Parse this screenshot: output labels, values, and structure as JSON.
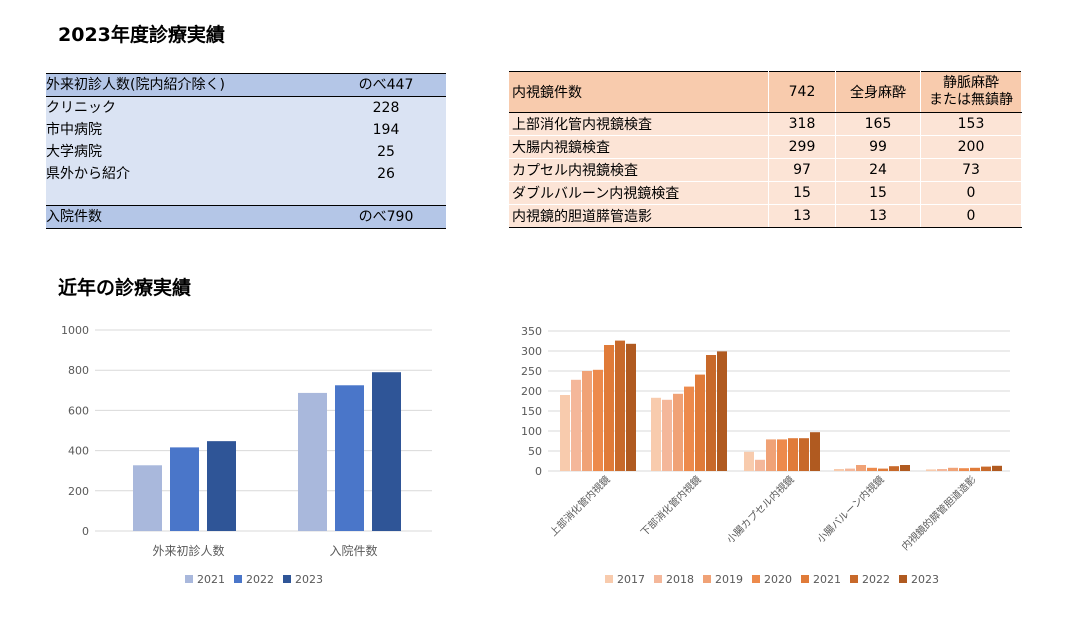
{
  "titles": {
    "performance_2023": "2023年度診療実績",
    "recent": "近年の診療実績"
  },
  "left_table": {
    "header_label": "外来初診人数(院内紹介除く)",
    "header_value": "のべ447",
    "rows": [
      {
        "label": "クリニック",
        "value": "228"
      },
      {
        "label": "市中病院",
        "value": "194"
      },
      {
        "label": "大学病院",
        "value": "25"
      },
      {
        "label": "県外から紹介",
        "value": "26"
      }
    ],
    "admission_label": "入院件数",
    "admission_value": "のべ790"
  },
  "right_table": {
    "header": {
      "label": "内視鏡件数",
      "total": "742",
      "general": "全身麻酔",
      "sedation_l1": "静脈麻酔",
      "sedation_l2": "または無鎮静"
    },
    "rows": [
      {
        "label": "上部消化管内視鏡検査",
        "total": "318",
        "general": "165",
        "sedation": "153"
      },
      {
        "label": "大腸内視鏡検査",
        "total": "299",
        "general": "99",
        "sedation": "200"
      },
      {
        "label": "カプセル内視鏡検査",
        "total": "97",
        "general": "24",
        "sedation": "73"
      },
      {
        "label": "ダブルバルーン内視鏡検査",
        "total": "15",
        "general": "15",
        "sedation": "0"
      },
      {
        "label": "内視鏡的胆道膵管造影",
        "total": "13",
        "general": "13",
        "sedation": "0"
      }
    ]
  },
  "chart_data": [
    {
      "type": "bar",
      "categories": [
        "外来初診人数",
        "入院件数"
      ],
      "series": [
        {
          "name": "2021",
          "color": "#a9b8dc",
          "values": [
            327,
            687
          ]
        },
        {
          "name": "2022",
          "color": "#4a76c9",
          "values": [
            416,
            725
          ]
        },
        {
          "name": "2023",
          "color": "#2f5597",
          "values": [
            447,
            790
          ]
        }
      ],
      "ylim": [
        0,
        1000
      ],
      "yticks": [
        0,
        200,
        400,
        600,
        800,
        1000
      ],
      "grid": true,
      "legend": "bottom"
    },
    {
      "type": "bar",
      "categories": [
        "上部消化管内視鏡",
        "下部消化管内視鏡",
        "小腸カプセル内視鏡",
        "小腸バルーン内視鏡",
        "内視鏡的膵管胆道造影"
      ],
      "series": [
        {
          "name": "2017",
          "color": "#f8cbad",
          "values": [
            190,
            183,
            48,
            5,
            4
          ]
        },
        {
          "name": "2018",
          "color": "#f4b79a",
          "values": [
            228,
            178,
            28,
            6,
            5
          ]
        },
        {
          "name": "2019",
          "color": "#f0a276",
          "values": [
            250,
            193,
            79,
            15,
            8
          ]
        },
        {
          "name": "2020",
          "color": "#ed8a4c",
          "values": [
            253,
            211,
            79,
            8,
            7
          ]
        },
        {
          "name": "2021",
          "color": "#e07b39",
          "values": [
            315,
            241,
            82,
            6,
            8
          ]
        },
        {
          "name": "2022",
          "color": "#c8692a",
          "values": [
            326,
            290,
            82,
            12,
            11
          ]
        },
        {
          "name": "2023",
          "color": "#b05a20",
          "values": [
            318,
            299,
            97,
            15,
            13
          ]
        }
      ],
      "ylim": [
        0,
        350
      ],
      "yticks": [
        0,
        50,
        100,
        150,
        200,
        250,
        300,
        350
      ],
      "grid": true,
      "legend": "bottom"
    }
  ]
}
